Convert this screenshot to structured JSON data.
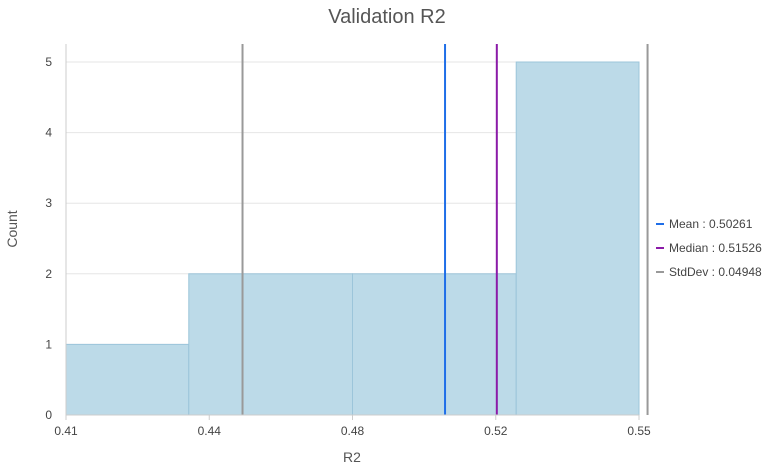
{
  "chart_data": {
    "type": "bar",
    "title": "Validation R2",
    "xlabel": "R2",
    "ylabel": "Count",
    "x_ticks": [
      "0.41",
      "0.44",
      "0.48",
      "0.52",
      "0.55"
    ],
    "y_ticks": [
      "0",
      "1",
      "2",
      "3",
      "4",
      "5"
    ],
    "xlim": [
      0.41,
      0.55
    ],
    "ylim": [
      0,
      5
    ],
    "grid": true,
    "bins": [
      {
        "start": 0.41,
        "end": 0.44,
        "count": 1
      },
      {
        "start": 0.44,
        "end": 0.48,
        "count": 2
      },
      {
        "start": 0.48,
        "end": 0.52,
        "count": 2
      },
      {
        "start": 0.52,
        "end": 0.55,
        "count": 5
      }
    ],
    "bar_color": "#bcdae8",
    "bar_edge_color": "#9cc5da",
    "reference_lines": [
      {
        "key": "mean",
        "value": 0.50261,
        "color": "#1f6ee8"
      },
      {
        "key": "median",
        "value": 0.51526,
        "color": "#8b1aa8"
      },
      {
        "key": "stddev_low",
        "value": 0.45313,
        "color": "#999999"
      },
      {
        "key": "stddev_high",
        "value": 0.55209,
        "color": "#999999"
      }
    ],
    "legend_position": "right",
    "legend": [
      {
        "label": "Mean : 0.50261",
        "color": "#1f6ee8"
      },
      {
        "label": "Median : 0.51526",
        "color": "#8b1aa8"
      },
      {
        "label": "StdDev : 0.04948",
        "color": "#999999"
      }
    ]
  }
}
